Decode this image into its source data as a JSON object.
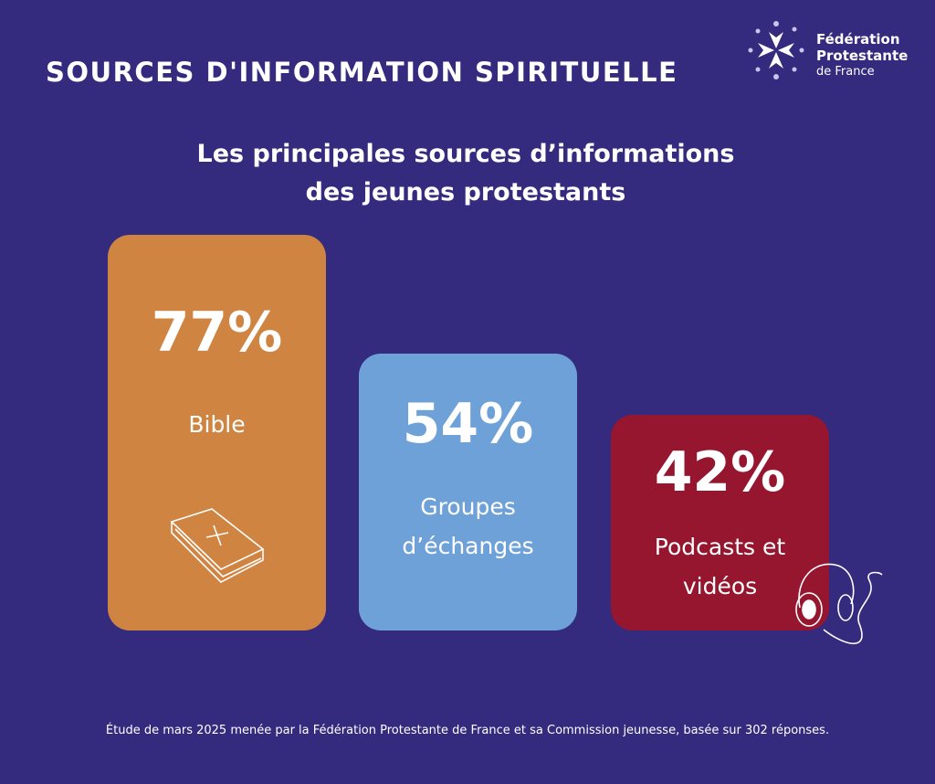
{
  "header": {
    "title": "SOURCES D'INFORMATION SPIRITUELLE",
    "logo_line1": "Fédération",
    "logo_line2": "Protestante",
    "logo_line3": "de France"
  },
  "chart_data": {
    "type": "bar",
    "title": "Les principales sources d’informations des jeunes protestants",
    "title_line1": "Les principales sources d’informations",
    "title_line2": "des jeunes protestants",
    "categories": [
      "Bible",
      "Groupes d’échanges",
      "Podcasts et vidéos"
    ],
    "label_lines": [
      [
        "Bible"
      ],
      [
        "Groupes",
        "d’échanges"
      ],
      [
        "Podcasts et",
        "vidéos"
      ]
    ],
    "values": [
      77,
      54,
      42
    ],
    "value_labels": [
      "77%",
      "54%",
      "42%"
    ],
    "colors": [
      "#cf8442",
      "#6fa1d9",
      "#96152f"
    ],
    "xlabel": "",
    "ylabel": "",
    "ylim": [
      0,
      100
    ]
  },
  "footer": "Étude de mars 2025 menée par la Fédération Protestante de France et sa Commission jeunesse, basée sur 302 réponses."
}
